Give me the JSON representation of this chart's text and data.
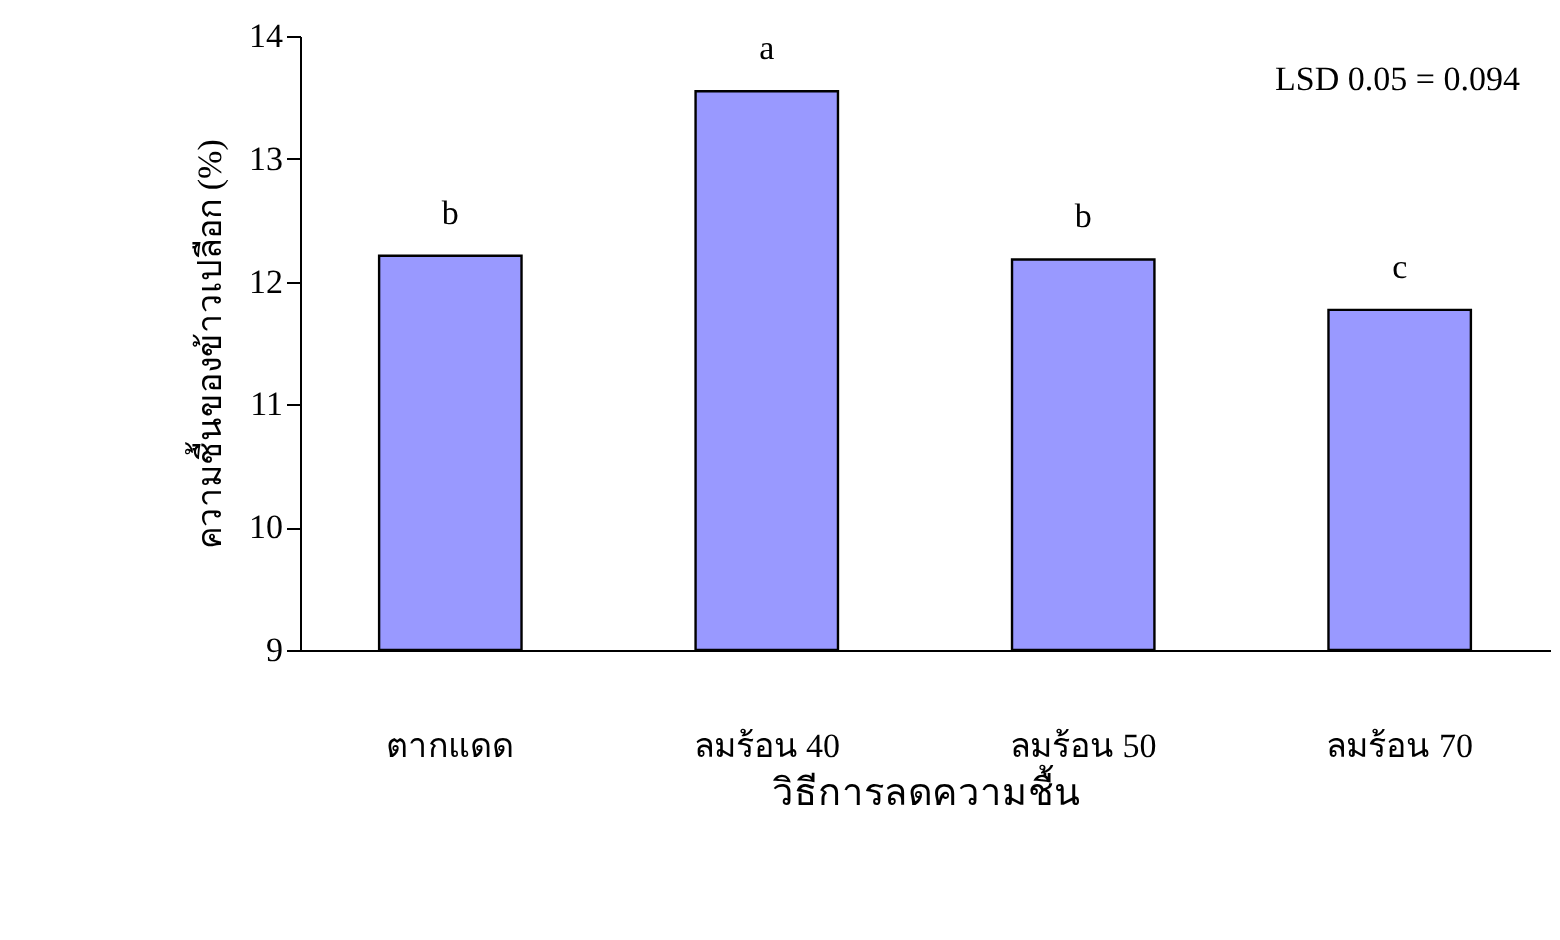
{
  "chart_data": {
    "type": "bar",
    "xlabel": "วิธีการลดความชื้น",
    "ylabel": "ความชื้นของข้าวเปลือก (%)",
    "categories": [
      "ตากแดด",
      "ลมร้อน 40",
      "ลมร้อน 50",
      "ลมร้อน 70"
    ],
    "values": [
      12.21,
      13.55,
      12.18,
      11.77
    ],
    "color": "#9999ff",
    "ylim": [
      9,
      14
    ],
    "yticks": [
      9,
      10,
      11,
      12,
      13,
      14
    ],
    "grid": false,
    "annotations": [
      {
        "text": "b",
        "x": "ตากแดด",
        "y": 12.21
      },
      {
        "text": "a",
        "x": "ลมร้อน 40",
        "y": 13.55
      },
      {
        "text": "b",
        "x": "ลมร้อน 50",
        "y": 12.18
      },
      {
        "text": "c",
        "x": "ลมร้อน 70",
        "y": 11.77
      },
      "LSD 0.05 = 0.094"
    ]
  }
}
